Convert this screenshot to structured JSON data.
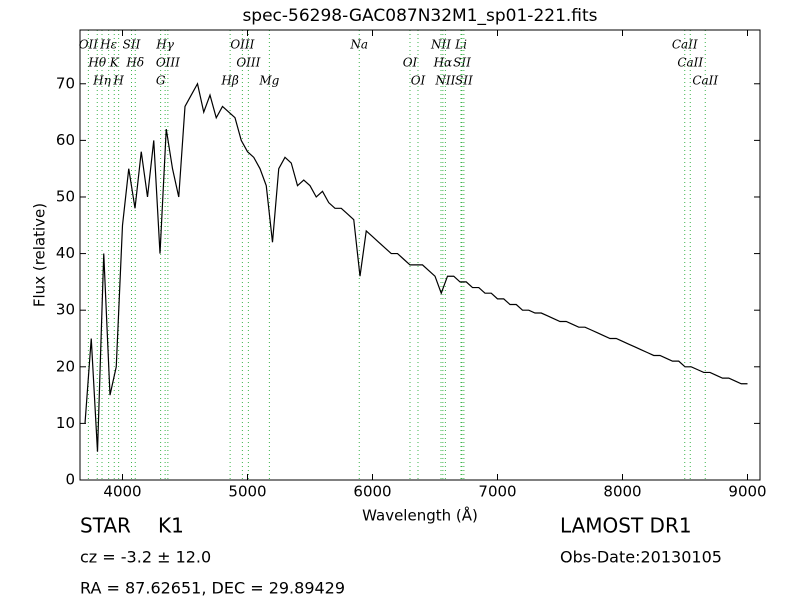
{
  "chart_data": {
    "type": "line",
    "title": "spec-56298-GAC087N32M1_sp01-221.fits",
    "xlabel": "Wavelength (Å)",
    "ylabel": "Flux (relative)",
    "xlim": [
      3660,
      9100
    ],
    "ylim": [
      0,
      79.5
    ],
    "xticks": [
      4000,
      5000,
      6000,
      7000,
      8000,
      9000
    ],
    "yticks": [
      0,
      10,
      20,
      30,
      40,
      50,
      60,
      70
    ],
    "x": [
      3700,
      3750,
      3800,
      3850,
      3900,
      3950,
      4000,
      4050,
      4100,
      4150,
      4200,
      4250,
      4300,
      4350,
      4400,
      4450,
      4500,
      4550,
      4600,
      4650,
      4700,
      4750,
      4800,
      4850,
      4900,
      4950,
      5000,
      5050,
      5100,
      5150,
      5200,
      5250,
      5300,
      5350,
      5400,
      5450,
      5500,
      5550,
      5600,
      5650,
      5700,
      5750,
      5800,
      5850,
      5900,
      5950,
      6000,
      6050,
      6100,
      6150,
      6200,
      6250,
      6300,
      6350,
      6400,
      6450,
      6500,
      6550,
      6600,
      6650,
      6700,
      6750,
      6800,
      6850,
      6900,
      6950,
      7000,
      7050,
      7100,
      7150,
      7200,
      7250,
      7300,
      7350,
      7400,
      7450,
      7500,
      7550,
      7600,
      7650,
      7700,
      7750,
      7800,
      7850,
      7900,
      7950,
      8000,
      8050,
      8100,
      8150,
      8200,
      8250,
      8300,
      8350,
      8400,
      8450,
      8500,
      8550,
      8600,
      8650,
      8700,
      8750,
      8800,
      8850,
      8900,
      8950,
      9000
    ],
    "series": [
      {
        "color": "#000000",
        "values": [
          10,
          25,
          5,
          40,
          15,
          20,
          45,
          55,
          48,
          58,
          50,
          60,
          40,
          62,
          55,
          50,
          66,
          68,
          70,
          65,
          68,
          64,
          66,
          65,
          64,
          60,
          58,
          57,
          55,
          52,
          42,
          55,
          57,
          56,
          52,
          53,
          52,
          50,
          51,
          49,
          48,
          48,
          47,
          46,
          36,
          44,
          43,
          42,
          41,
          40,
          40,
          39,
          38,
          38,
          38,
          37,
          36,
          33,
          36,
          36,
          35,
          35,
          34,
          34,
          33,
          33,
          32,
          32,
          31,
          31,
          30,
          30,
          29.5,
          29.5,
          29,
          28.5,
          28,
          28,
          27.5,
          27,
          27,
          26.5,
          26,
          25.5,
          25,
          25,
          24.5,
          24,
          23.5,
          23,
          22.5,
          22,
          22,
          21.5,
          21,
          21,
          20,
          20,
          19.5,
          19,
          19,
          18.5,
          18,
          18,
          17.5,
          17,
          17
        ]
      }
    ],
    "annotations": [
      {
        "label": "OII",
        "x": 3727
      },
      {
        "label": "Hθ",
        "x": 3798
      },
      {
        "label": "Hη",
        "x": 3836
      },
      {
        "label": "Hε",
        "x": 3889
      },
      {
        "label": "K",
        "x": 3934
      },
      {
        "label": "H",
        "x": 3969
      },
      {
        "label": "SII",
        "x": 4072
      },
      {
        "label": "Hδ",
        "x": 4102
      },
      {
        "label": "G",
        "x": 4305
      },
      {
        "label": "Hγ",
        "x": 4341
      },
      {
        "label": "OIII",
        "x": 4363
      },
      {
        "label": "Hβ",
        "x": 4861
      },
      {
        "label": "OIII",
        "x": 4959
      },
      {
        "label": "OIII",
        "x": 5007
      },
      {
        "label": "Mg",
        "x": 5175
      },
      {
        "label": "Na",
        "x": 5894
      },
      {
        "label": "OI",
        "x": 6300
      },
      {
        "label": "OI",
        "x": 6364
      },
      {
        "label": "NII",
        "x": 6548
      },
      {
        "label": "Hα",
        "x": 6563
      },
      {
        "label": "NII",
        "x": 6583
      },
      {
        "label": "Li",
        "x": 6708
      },
      {
        "label": "SII",
        "x": 6716
      },
      {
        "label": "SII",
        "x": 6731
      },
      {
        "label": "CaII",
        "x": 8498
      },
      {
        "label": "CaII",
        "x": 8542
      },
      {
        "label": "CaII",
        "x": 8662
      }
    ],
    "object_class": "STAR",
    "subclass": "K1",
    "cz": "cz = -3.2 ± 12.0",
    "coords": "RA = 87.62651, DEC = 29.89429",
    "survey": "LAMOST DR1",
    "obs_date": "Obs-Date:20130105"
  }
}
